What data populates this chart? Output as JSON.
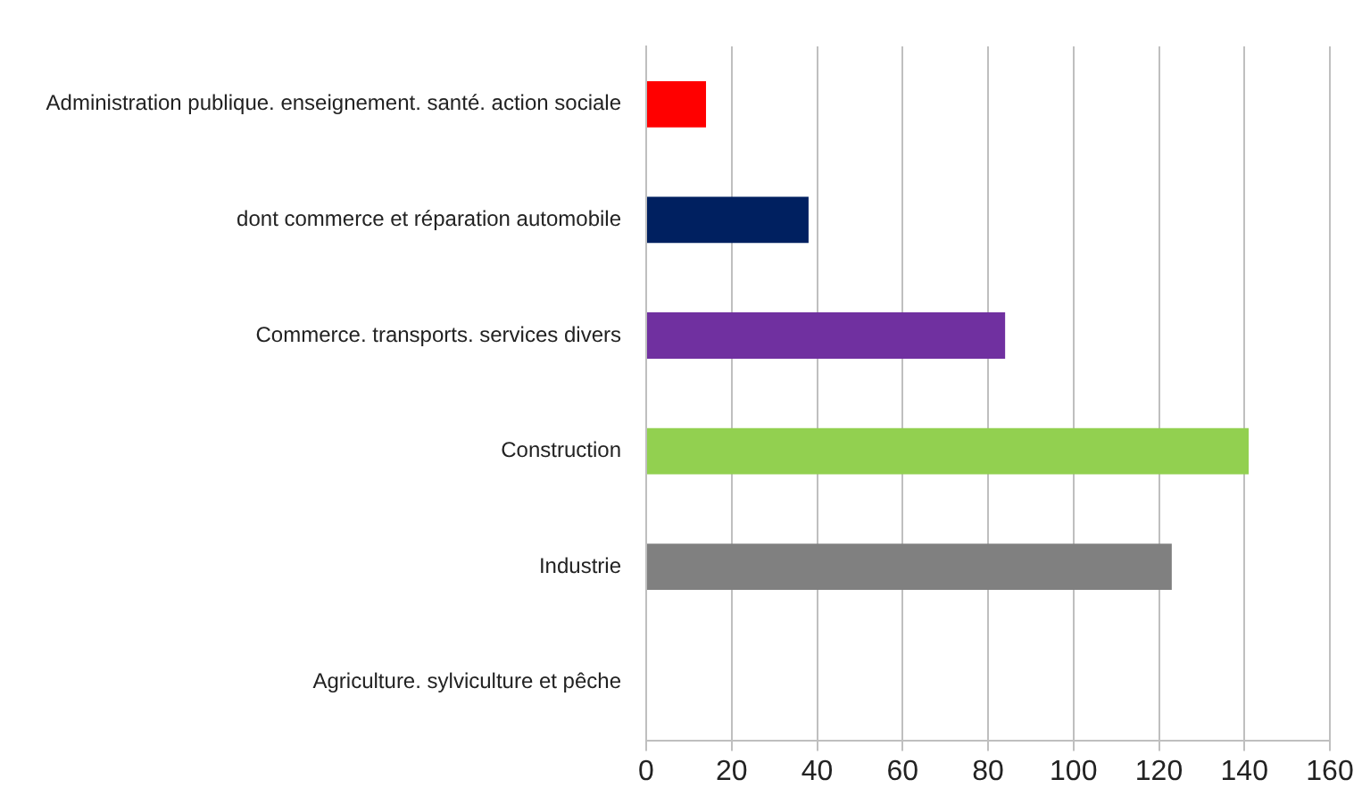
{
  "chart_data": {
    "type": "bar",
    "orientation": "horizontal",
    "categories": [
      "Administration publique. enseignement. santé. action sociale",
      "dont commerce et réparation automobile",
      "Commerce. transports. services divers",
      "Construction",
      "Industrie",
      "Agriculture. sylviculture et pêche"
    ],
    "values": [
      14,
      38,
      84,
      141,
      123,
      0
    ],
    "colors": [
      "#ff0000",
      "#002060",
      "#7030a0",
      "#92d050",
      "#808080",
      "#808080"
    ],
    "xlim": [
      0,
      160
    ],
    "xticks": [
      0,
      20,
      40,
      60,
      80,
      100,
      120,
      140,
      160
    ],
    "grid": "x",
    "legend": false
  }
}
